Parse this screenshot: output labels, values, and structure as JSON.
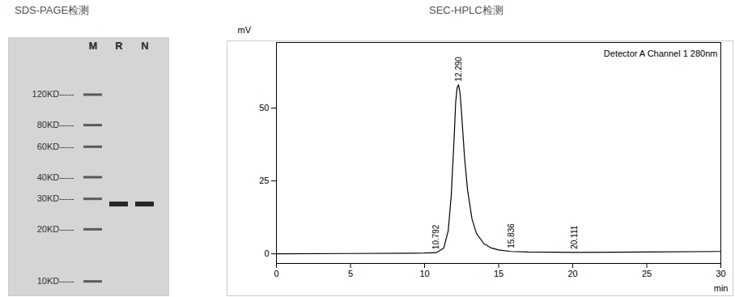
{
  "chart_data": [
    {
      "type": "gel",
      "title": "SDS-PAGE检测",
      "lanes": [
        "M",
        "R",
        "N"
      ],
      "log": "y",
      "ylim": [
        9,
        200
      ],
      "yticks": [
        {
          "value": 120,
          "label": "120KD-----"
        },
        {
          "value": 80,
          "label": "80KD-----"
        },
        {
          "value": 60,
          "label": "60KD-----"
        },
        {
          "value": 40,
          "label": "40KD-----"
        },
        {
          "value": 30,
          "label": "30KD-----"
        },
        {
          "value": 20,
          "label": "20KD-----"
        },
        {
          "value": 10,
          "label": "10KD-----"
        }
      ],
      "marker_bands": [
        120,
        80,
        60,
        40,
        30,
        20,
        10
      ],
      "bands": [
        {
          "lane": "R",
          "value": 28
        },
        {
          "lane": "N",
          "value": 28
        }
      ],
      "color": "#262626"
    },
    {
      "type": "line",
      "title": "SEC-HPLC检测",
      "x": [
        0,
        5,
        10,
        10.792,
        11.3,
        11.6,
        11.8,
        12.0,
        12.1,
        12.2,
        12.29,
        12.4,
        12.5,
        12.7,
        12.9,
        13.2,
        13.5,
        14,
        14.5,
        15,
        15.836,
        17,
        20.111,
        25,
        30
      ],
      "values": [
        0,
        0.1,
        0.25,
        0.4,
        2,
        8,
        20,
        40,
        52,
        57,
        58,
        55,
        48,
        33,
        22,
        12,
        7,
        3.5,
        2,
        1.3,
        0.8,
        0.6,
        0.5,
        0.6,
        0.8
      ],
      "xlim": [
        0,
        30
      ],
      "ylim": [
        -3.3,
        72.5
      ],
      "xticks": [
        0,
        5,
        10,
        15,
        20,
        25,
        30
      ],
      "yticks": [
        0,
        25,
        50
      ],
      "x_label": "min",
      "y_label": "mV",
      "annotation": "Detector A Channel 1 280nm",
      "peak_labels": [
        {
          "value": 10.792,
          "label": "10.792"
        },
        {
          "value": 12.29,
          "label": "12.290"
        },
        {
          "value": 15.836,
          "label": "15.836"
        },
        {
          "value": 20.111,
          "label": "20.111"
        }
      ],
      "color": "#000000"
    }
  ]
}
